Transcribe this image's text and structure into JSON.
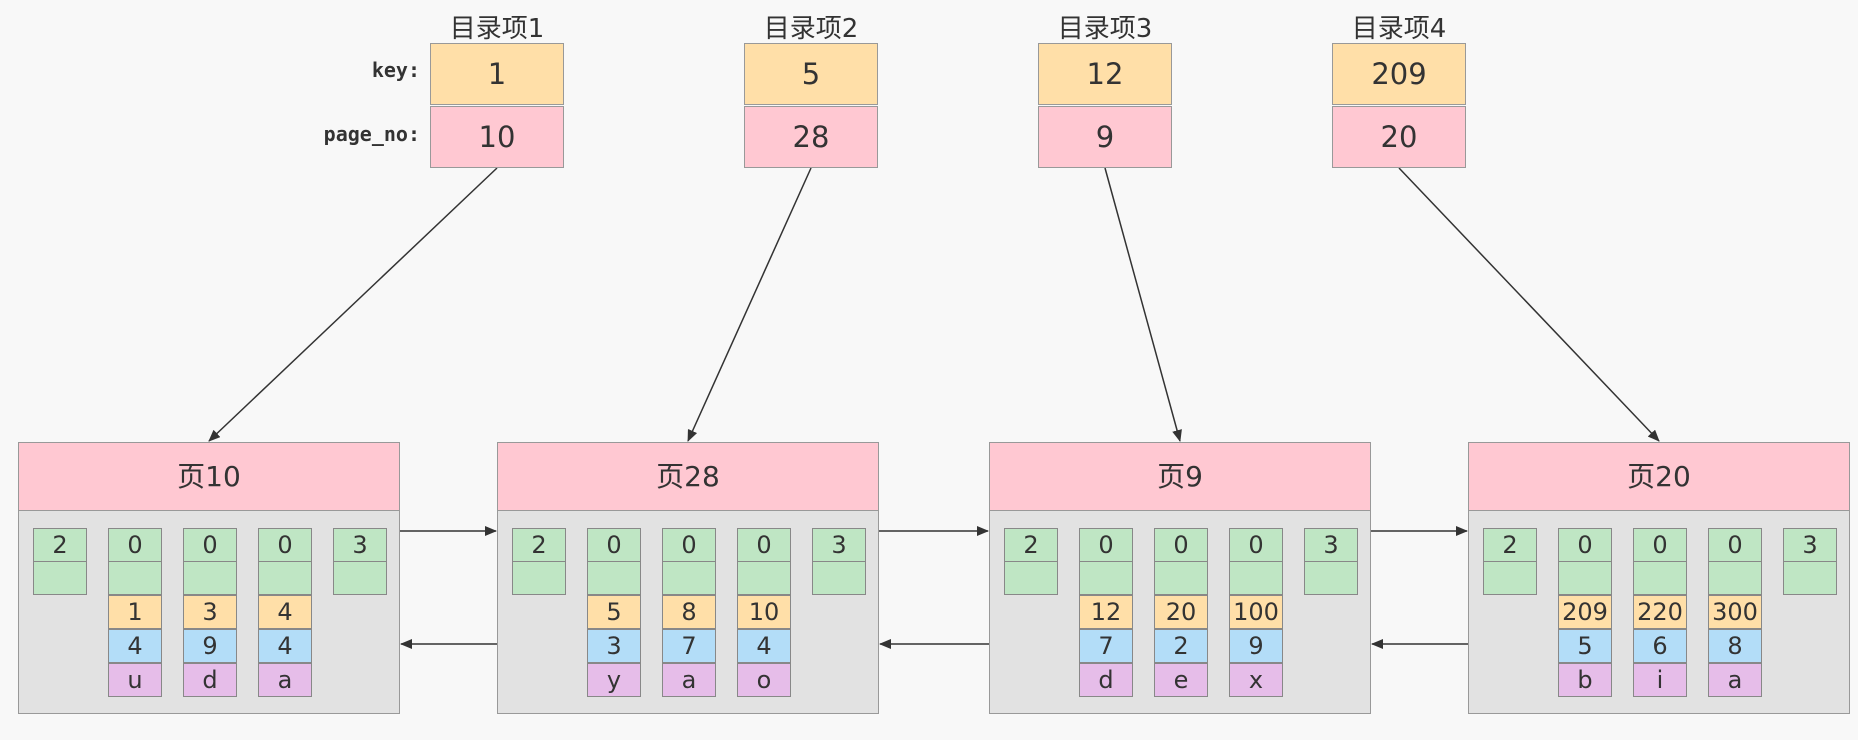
{
  "directory": {
    "labels": {
      "key": "key:",
      "page_no": "page_no:"
    },
    "items": [
      {
        "title": "目录项1",
        "key": "1",
        "page_no": "10"
      },
      {
        "title": "目录项2",
        "key": "5",
        "page_no": "28"
      },
      {
        "title": "目录项3",
        "key": "12",
        "page_no": "9"
      },
      {
        "title": "目录项4",
        "key": "209",
        "page_no": "20"
      }
    ]
  },
  "pages": [
    {
      "title": "页10",
      "infimum": "2",
      "supremum": "3",
      "records": [
        {
          "header": "0",
          "key": "1",
          "col2": "4",
          "col3": "u"
        },
        {
          "header": "0",
          "key": "3",
          "col2": "9",
          "col3": "d"
        },
        {
          "header": "0",
          "key": "4",
          "col2": "4",
          "col3": "a"
        }
      ]
    },
    {
      "title": "页28",
      "infimum": "2",
      "supremum": "3",
      "records": [
        {
          "header": "0",
          "key": "5",
          "col2": "3",
          "col3": "y"
        },
        {
          "header": "0",
          "key": "8",
          "col2": "7",
          "col3": "a"
        },
        {
          "header": "0",
          "key": "10",
          "col2": "4",
          "col3": "o"
        }
      ]
    },
    {
      "title": "页9",
      "infimum": "2",
      "supremum": "3",
      "records": [
        {
          "header": "0",
          "key": "12",
          "col2": "7",
          "col3": "d"
        },
        {
          "header": "0",
          "key": "20",
          "col2": "2",
          "col3": "e"
        },
        {
          "header": "0",
          "key": "100",
          "col2": "9",
          "col3": "x"
        }
      ]
    },
    {
      "title": "页20",
      "infimum": "2",
      "supremum": "3",
      "records": [
        {
          "header": "0",
          "key": "209",
          "col2": "5",
          "col3": "b"
        },
        {
          "header": "0",
          "key": "220",
          "col2": "6",
          "col3": "i"
        },
        {
          "header": "0",
          "key": "300",
          "col2": "8",
          "col3": "a"
        }
      ]
    }
  ],
  "colors": {
    "background": "#f8f8f8",
    "page_body": "#e2e2e2",
    "header_pink": "#ffc8d2",
    "key_orange": "#ffdfa8",
    "record_green": "#bfe6c4",
    "col_blue": "#b3ddf8",
    "col_purple": "#e6bde9",
    "line": "#333333"
  }
}
